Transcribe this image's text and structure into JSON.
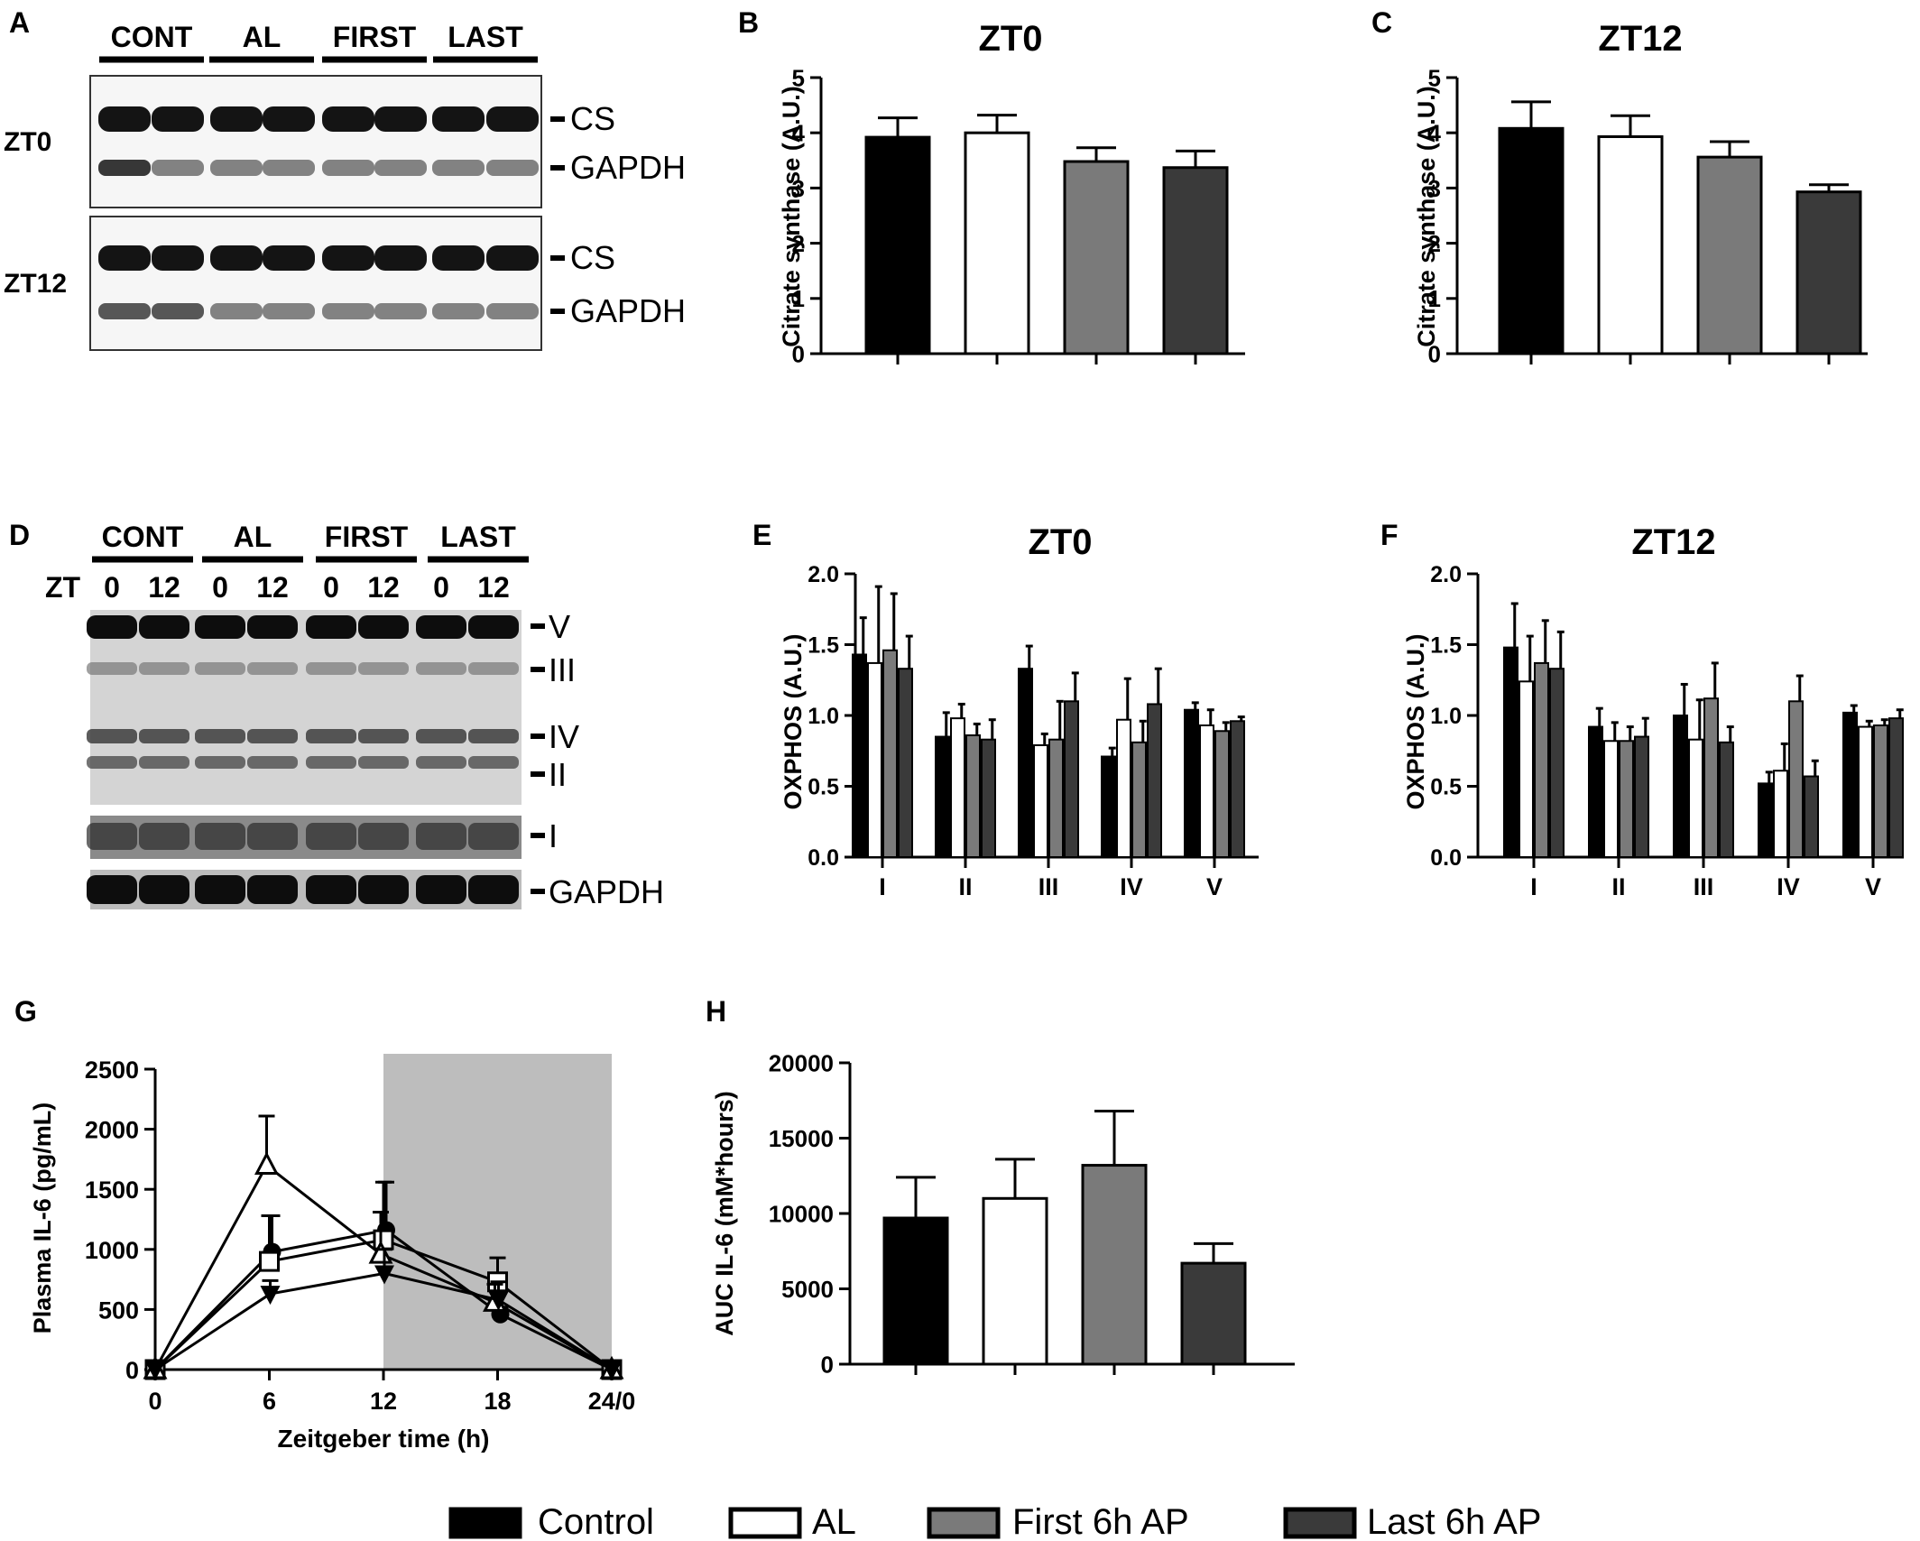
{
  "colors": {
    "control": "#000000",
    "al": "#ffffff",
    "first": "#7a7a7a",
    "last": "#3a3a3a",
    "dark_phase": "#bdbdbd"
  },
  "legend": [
    {
      "name": "Control",
      "color": "#000000"
    },
    {
      "name": "AL",
      "color": "#ffffff"
    },
    {
      "name": "First 6h AP",
      "color": "#7a7a7a"
    },
    {
      "name": "Last 6h AP",
      "color": "#3a3a3a"
    }
  ],
  "blot_a": {
    "letter": "A",
    "groups": [
      "CONT",
      "AL",
      "FIRST",
      "LAST"
    ],
    "rows": [
      {
        "label": "ZT0",
        "bands": [
          "CS",
          "GAPDH"
        ]
      },
      {
        "label": "ZT12",
        "bands": [
          "CS",
          "GAPDH"
        ]
      }
    ]
  },
  "blot_d": {
    "letter": "D",
    "groups": [
      "CONT",
      "AL",
      "FIRST",
      "LAST"
    ],
    "zt_label": "ZT",
    "zt_values": [
      "0",
      "12",
      "0",
      "12",
      "0",
      "12",
      "0",
      "12"
    ],
    "bands": [
      "V",
      "III",
      "IV",
      "II",
      "I",
      "GAPDH"
    ]
  },
  "chart_data": [
    {
      "panel": "B",
      "type": "bar",
      "title": "ZT0",
      "ylabel": "Citrate synthase (A.U.)",
      "ylim": [
        0,
        5
      ],
      "yticks": [
        0,
        1,
        2,
        3,
        4,
        5
      ],
      "categories": [
        "Control",
        "AL",
        "First 6h AP",
        "Last 6h AP"
      ],
      "values": [
        3.92,
        4.0,
        3.48,
        3.37
      ],
      "errors": [
        0.35,
        0.32,
        0.25,
        0.3
      ]
    },
    {
      "panel": "C",
      "type": "bar",
      "title": "ZT12",
      "ylabel": "Citrate synthase (A.U.)",
      "ylim": [
        0,
        5
      ],
      "yticks": [
        0,
        1,
        2,
        3,
        4,
        5
      ],
      "categories": [
        "Control",
        "AL",
        "First 6h AP",
        "Last 6h AP"
      ],
      "values": [
        4.08,
        3.93,
        3.56,
        2.93
      ],
      "errors": [
        0.48,
        0.38,
        0.28,
        0.13
      ]
    },
    {
      "panel": "E",
      "type": "bar",
      "title": "ZT0",
      "ylabel": "OXPHOS (A.U.)",
      "ylim": [
        0,
        2
      ],
      "yticks": [
        "0.0",
        "0.5",
        "1.0",
        "1.5",
        "2.0"
      ],
      "categories": [
        "I",
        "II",
        "III",
        "IV",
        "V"
      ],
      "series": [
        {
          "values": [
            1.43,
            0.85,
            1.33,
            0.71,
            1.04
          ],
          "errors": [
            0.26,
            0.17,
            0.16,
            0.06,
            0.05
          ]
        },
        {
          "values": [
            1.37,
            0.98,
            0.79,
            0.97,
            0.93
          ],
          "errors": [
            0.54,
            0.1,
            0.08,
            0.29,
            0.11
          ]
        },
        {
          "values": [
            1.46,
            0.86,
            0.83,
            0.81,
            0.89
          ],
          "errors": [
            0.4,
            0.08,
            0.27,
            0.15,
            0.06
          ]
        },
        {
          "values": [
            1.33,
            0.83,
            1.1,
            1.08,
            0.96
          ],
          "errors": [
            0.23,
            0.14,
            0.2,
            0.25,
            0.03
          ]
        }
      ]
    },
    {
      "panel": "F",
      "type": "bar",
      "title": "ZT12",
      "ylabel": "OXPHOS (A.U.)",
      "ylim": [
        0,
        2
      ],
      "yticks": [
        "0.0",
        "0.5",
        "1.0",
        "1.5",
        "2.0"
      ],
      "categories": [
        "I",
        "II",
        "III",
        "IV",
        "V"
      ],
      "series": [
        {
          "values": [
            1.48,
            0.92,
            1.0,
            0.52,
            1.02
          ],
          "errors": [
            0.31,
            0.13,
            0.22,
            0.08,
            0.05
          ]
        },
        {
          "values": [
            1.24,
            0.82,
            0.83,
            0.61,
            0.92
          ],
          "errors": [
            0.32,
            0.13,
            0.28,
            0.19,
            0.04
          ]
        },
        {
          "values": [
            1.37,
            0.82,
            1.12,
            1.1,
            0.93
          ],
          "errors": [
            0.3,
            0.1,
            0.25,
            0.18,
            0.04
          ]
        },
        {
          "values": [
            1.33,
            0.85,
            0.81,
            0.57,
            0.98
          ],
          "errors": [
            0.26,
            0.13,
            0.11,
            0.11,
            0.06
          ]
        }
      ]
    },
    {
      "panel": "G",
      "type": "line",
      "xlabel": "Zeitgeber time (h)",
      "ylabel": "Plasma IL-6 (pg/mL)",
      "xlim": [
        0,
        24
      ],
      "ylim": [
        0,
        2500
      ],
      "x": [
        0,
        6,
        12,
        18,
        24
      ],
      "xticks": [
        "0",
        "6",
        "12",
        "18",
        "24/0"
      ],
      "yticks": [
        0,
        500,
        1000,
        1500,
        2000,
        2500
      ],
      "shaded_x": [
        12,
        24
      ],
      "series": [
        {
          "marker": "circle",
          "values": [
            0,
            980,
            1160,
            460,
            0
          ],
          "errors": [
            0,
            300,
            400,
            60,
            0
          ]
        },
        {
          "marker": "square",
          "values": [
            0,
            900,
            1080,
            730,
            0
          ],
          "errors": [
            0,
            380,
            480,
            200,
            0
          ]
        },
        {
          "marker": "triangle-up",
          "values": [
            0,
            1700,
            960,
            560,
            0
          ],
          "errors": [
            0,
            410,
            350,
            150,
            0
          ]
        },
        {
          "marker": "triangle-down",
          "values": [
            0,
            630,
            800,
            580,
            0
          ],
          "errors": [
            0,
            110,
            200,
            150,
            0
          ]
        }
      ]
    },
    {
      "panel": "H",
      "type": "bar",
      "ylabel": "AUC IL-6 (mM*hours)",
      "ylim": [
        0,
        20000
      ],
      "yticks": [
        0,
        5000,
        10000,
        15000,
        20000
      ],
      "categories": [
        "Control",
        "AL",
        "First 6h AP",
        "Last 6h AP"
      ],
      "values": [
        9700,
        11000,
        13200,
        6700
      ],
      "errors": [
        2700,
        2600,
        3600,
        1300
      ]
    }
  ]
}
